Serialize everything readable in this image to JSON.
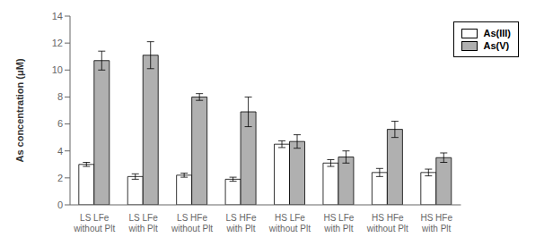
{
  "chart_data": {
    "type": "bar",
    "categories": [
      "LS LFe\nwithout Plt",
      "LS LFe\nwith Plt",
      "LS HFe\nwithout Plt",
      "LS HFe\nwith Plt",
      "HS LFe\nwithout Plt",
      "HS LFe\nwith Plt",
      "HS HFe\nwithout Plt",
      "HS HFe\nwith Plt"
    ],
    "series": [
      {
        "name": "As(III)",
        "color": "#ffffff",
        "values": [
          3.0,
          2.1,
          2.2,
          1.9,
          4.5,
          3.1,
          2.4,
          2.4
        ],
        "errors": [
          0.15,
          0.2,
          0.15,
          0.15,
          0.25,
          0.25,
          0.3,
          0.25
        ]
      },
      {
        "name": "As(V)",
        "color": "#b0b0b0",
        "values": [
          10.7,
          11.1,
          8.0,
          6.9,
          4.7,
          3.55,
          5.6,
          3.5
        ],
        "errors": [
          0.7,
          1.0,
          0.25,
          1.1,
          0.5,
          0.45,
          0.6,
          0.35
        ]
      }
    ],
    "ylabel": "As concentration (μM)",
    "ylim": [
      0,
      14
    ],
    "yticks": [
      0,
      2,
      4,
      6,
      8,
      10,
      12,
      14
    ],
    "legend": "upper right",
    "grid": false
  }
}
